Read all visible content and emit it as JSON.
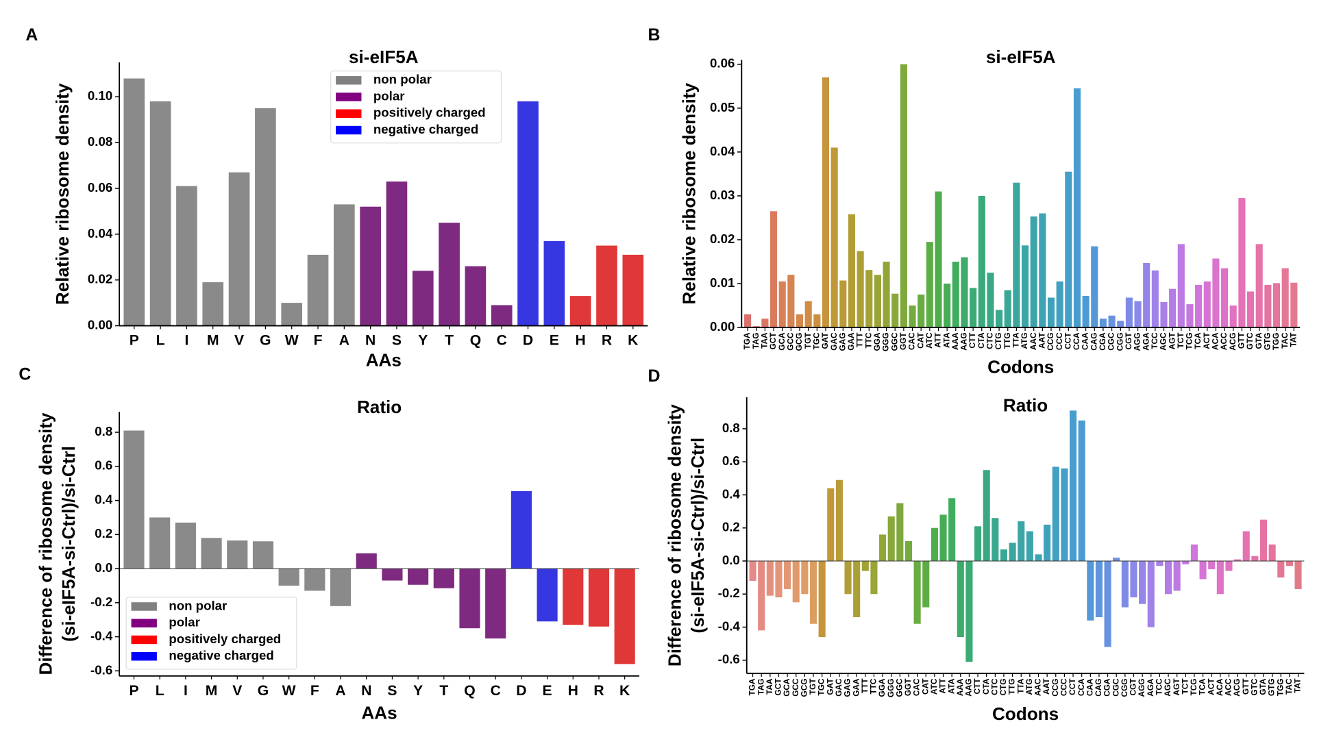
{
  "chart_data": [
    {
      "type": "bar",
      "panel_label": "A",
      "title": "si-eIF5A",
      "xlabel": "AAs",
      "ylabel": "Relative ribosome density",
      "categories": [
        "P",
        "L",
        "I",
        "M",
        "V",
        "G",
        "W",
        "F",
        "A",
        "N",
        "S",
        "Y",
        "T",
        "Q",
        "C",
        "D",
        "E",
        "H",
        "R",
        "K"
      ],
      "values": [
        0.108,
        0.098,
        0.061,
        0.019,
        0.067,
        0.095,
        0.01,
        0.031,
        0.053,
        0.052,
        0.063,
        0.024,
        0.045,
        0.026,
        0.009,
        0.098,
        0.037,
        0.013,
        0.035,
        0.031
      ],
      "colors": [
        "#8a8a8a",
        "#8a8a8a",
        "#8a8a8a",
        "#8a8a8a",
        "#8a8a8a",
        "#8a8a8a",
        "#8a8a8a",
        "#8a8a8a",
        "#8a8a8a",
        "#7d2a80",
        "#7d2a80",
        "#7d2a80",
        "#7d2a80",
        "#7d2a80",
        "#7d2a80",
        "#3737e2",
        "#3737e2",
        "#e03838",
        "#e03838",
        "#e03838"
      ],
      "ylim": [
        0,
        0.115
      ],
      "yticks": [
        {
          "value": 0,
          "label": "0.00"
        },
        {
          "value": 0.02,
          "label": "0.02"
        },
        {
          "value": 0.04,
          "label": "0.04"
        },
        {
          "value": 0.06,
          "label": "0.06"
        },
        {
          "value": 0.08,
          "label": "0.08"
        },
        {
          "value": 0.1,
          "label": "0.10"
        }
      ],
      "legend": {
        "corner": "upper center",
        "entries": [
          {
            "name": "non polar",
            "color": "#808080"
          },
          {
            "name": "polar",
            "color": "#800080"
          },
          {
            "name": "positively charged",
            "color": "#ff0000"
          },
          {
            "name": "negative charged",
            "color": "#0000ff"
          }
        ]
      }
    },
    {
      "type": "bar",
      "panel_label": "B",
      "title": "si-eIF5A",
      "xlabel": "Codons",
      "ylabel": "Relative ribosome density",
      "categories": [
        "TGA",
        "TAG",
        "TAA",
        "GCT",
        "GCA",
        "GCC",
        "GCG",
        "TGT",
        "TGC",
        "GAT",
        "GAC",
        "GAG",
        "GAA",
        "TTT",
        "TTC",
        "GGA",
        "GGG",
        "GGC",
        "GGT",
        "CAC",
        "CAT",
        "ATC",
        "ATT",
        "ATA",
        "AAA",
        "AAG",
        "CTT",
        "CTA",
        "CTC",
        "CTG",
        "TTG",
        "TTA",
        "ATG",
        "AAC",
        "AAT",
        "CCG",
        "CCC",
        "CCT",
        "CCA",
        "CAA",
        "CAG",
        "CGA",
        "CGC",
        "CGG",
        "CGT",
        "AGG",
        "AGA",
        "TCC",
        "AGC",
        "AGT",
        "TCT",
        "TCG",
        "TCA",
        "ACT",
        "ACA",
        "ACC",
        "ACG",
        "GTT",
        "GTC",
        "GTA",
        "GTG",
        "TGG",
        "TAC",
        "TAT"
      ],
      "values": [
        0.003,
        0.0003,
        0.002,
        0.0265,
        0.0105,
        0.012,
        0.003,
        0.006,
        0.003,
        0.057,
        0.041,
        0.0107,
        0.0258,
        0.0174,
        0.0131,
        0.012,
        0.015,
        0.0077,
        0.06,
        0.005,
        0.0075,
        0.0195,
        0.031,
        0.01,
        0.015,
        0.016,
        0.009,
        0.03,
        0.0125,
        0.004,
        0.0085,
        0.033,
        0.0187,
        0.0253,
        0.026,
        0.0068,
        0.0105,
        0.0355,
        0.0545,
        0.0072,
        0.0185,
        0.002,
        0.0027,
        0.0015,
        0.0068,
        0.006,
        0.0147,
        0.013,
        0.0058,
        0.0088,
        0.019,
        0.0053,
        0.0097,
        0.0105,
        0.0157,
        0.0135,
        0.005,
        0.0295,
        0.0082,
        0.019,
        0.0097,
        0.0101,
        0.0135,
        0.0102
      ],
      "colors": [
        "#d9716e",
        "#d8746a",
        "#d97865",
        "#d97c5e",
        "#d88058",
        "#d68451",
        "#d4884a",
        "#d08c44",
        "#cc903f",
        "#c6943a",
        "#c09838",
        "#b99b37",
        "#b29e36",
        "#aaa036",
        "#a2a236",
        "#9aa437",
        "#92a638",
        "#89a83a",
        "#7fa93c",
        "#74ab3e",
        "#68ac42",
        "#5cad46",
        "#50ad4c",
        "#46ad54",
        "#40ad5e",
        "#3cac68",
        "#3aab72",
        "#39aa7c",
        "#39a985",
        "#39a88e",
        "#3aa796",
        "#3ba69e",
        "#3ca5a5",
        "#3da4ac",
        "#3ea3b3",
        "#40a2ba",
        "#42a0c1",
        "#459fc8",
        "#499dce",
        "#4e9bd4",
        "#5598d9",
        "#5e95dd",
        "#6892e0",
        "#738fe3",
        "#7e8be6",
        "#8a88e8",
        "#9585e9",
        "#a082e9",
        "#aa7fe8",
        "#b47ce6",
        "#bd7ae3",
        "#c678df",
        "#ce76da",
        "#d574d4",
        "#da73cd",
        "#de72c6",
        "#e172bf",
        "#e372b8",
        "#e472b1",
        "#e573aa",
        "#e574a3",
        "#e5759c",
        "#e47795",
        "#e3798e"
      ],
      "ylim": [
        0,
        0.061
      ],
      "yticks": [
        {
          "value": 0,
          "label": "0.00"
        },
        {
          "value": 0.01,
          "label": "0.01"
        },
        {
          "value": 0.02,
          "label": "0.02"
        },
        {
          "value": 0.03,
          "label": "0.03"
        },
        {
          "value": 0.04,
          "label": "0.04"
        },
        {
          "value": 0.05,
          "label": "0.05"
        },
        {
          "value": 0.06,
          "label": "0.06"
        }
      ]
    },
    {
      "type": "bar",
      "panel_label": "C",
      "title": "Ratio",
      "xlabel": "AAs",
      "ylabel": [
        "Difference of ribosome density",
        "(si-eIF5A-si-Ctrl)/si-Ctrl"
      ],
      "categories": [
        "P",
        "L",
        "I",
        "M",
        "V",
        "G",
        "W",
        "F",
        "A",
        "N",
        "S",
        "Y",
        "T",
        "Q",
        "C",
        "D",
        "E",
        "H",
        "R",
        "K"
      ],
      "values": [
        0.81,
        0.3,
        0.27,
        0.18,
        0.165,
        0.16,
        -0.1,
        -0.13,
        -0.22,
        0.09,
        -0.07,
        -0.095,
        -0.115,
        -0.35,
        -0.41,
        0.455,
        -0.31,
        -0.33,
        -0.34,
        -0.56
      ],
      "colors": [
        "#8a8a8a",
        "#8a8a8a",
        "#8a8a8a",
        "#8a8a8a",
        "#8a8a8a",
        "#8a8a8a",
        "#8a8a8a",
        "#8a8a8a",
        "#8a8a8a",
        "#7d2a80",
        "#7d2a80",
        "#7d2a80",
        "#7d2a80",
        "#7d2a80",
        "#7d2a80",
        "#3737e2",
        "#3737e2",
        "#e03838",
        "#e03838",
        "#e03838"
      ],
      "ylim": [
        -0.63,
        0.92
      ],
      "yticks": [
        -0.6,
        -0.4,
        -0.2,
        {
          "value": 0,
          "label": "0.0"
        },
        0.2,
        0.4,
        0.6,
        0.8
      ],
      "legend": {
        "corner": "lower left",
        "entries": [
          {
            "name": "non polar",
            "color": "#808080"
          },
          {
            "name": "polar",
            "color": "#800080"
          },
          {
            "name": "positively charged",
            "color": "#ff0000"
          },
          {
            "name": "negative charged",
            "color": "#0000ff"
          }
        ]
      }
    },
    {
      "type": "bar",
      "panel_label": "D",
      "title": "Ratio",
      "xlabel": "Codons",
      "ylabel": [
        "Difference of ribosome density",
        "(si-eIF5A-si-Ctrl)/si-Ctrl"
      ],
      "categories": [
        "TGA",
        "TAG",
        "TAA",
        "GCT",
        "GCA",
        "GCC",
        "GCG",
        "TGT",
        "TGC",
        "GAT",
        "GAC",
        "GAG",
        "GAA",
        "TTT",
        "TTC",
        "GGA",
        "GGG",
        "GGC",
        "GGT",
        "CAC",
        "CAT",
        "ATC",
        "ATT",
        "ATA",
        "AAA",
        "AAG",
        "CTT",
        "CTA",
        "CTC",
        "CTG",
        "TTG",
        "TTA",
        "ATG",
        "AAC",
        "AAT",
        "CCG",
        "CCC",
        "CCT",
        "CCA",
        "CAA",
        "CAG",
        "CGA",
        "CGC",
        "CGG",
        "CGT",
        "AGG",
        "AGA",
        "TCC",
        "AGC",
        "AGT",
        "TCT",
        "TCG",
        "TCA",
        "ACT",
        "ACA",
        "ACC",
        "ACG",
        "GTT",
        "GTC",
        "GTA",
        "GTG",
        "TGG",
        "TAC",
        "TAT"
      ],
      "values": [
        -0.12,
        -0.42,
        -0.21,
        -0.22,
        -0.17,
        -0.25,
        -0.2,
        -0.38,
        -0.46,
        0.44,
        0.49,
        -0.2,
        -0.34,
        -0.06,
        -0.2,
        0.16,
        0.27,
        0.35,
        0.12,
        -0.38,
        -0.28,
        0.2,
        0.28,
        0.38,
        -0.46,
        -0.61,
        0.21,
        0.55,
        0.26,
        0.07,
        0.11,
        0.24,
        0.18,
        0.04,
        0.22,
        0.57,
        0.56,
        0.91,
        0.85,
        -0.36,
        -0.34,
        -0.52,
        0.02,
        -0.28,
        -0.22,
        -0.26,
        -0.4,
        -0.03,
        -0.2,
        -0.18,
        -0.02,
        0.1,
        -0.11,
        -0.05,
        -0.2,
        -0.06,
        0.01,
        0.18,
        0.03,
        0.25,
        0.1,
        -0.1,
        -0.03,
        -0.17
      ],
      "colors": [
        "#e48a88",
        "#e48c84",
        "#e4907f",
        "#e49479",
        "#e39773",
        "#e19a6c",
        "#de9d66",
        "#da9f60",
        "#c6943a",
        "#c09838",
        "#b99b37",
        "#b29e36",
        "#aaa036",
        "#a2a236",
        "#9aa437",
        "#92a638",
        "#89a83a",
        "#7fa93c",
        "#74ab3e",
        "#68ac42",
        "#5cad46",
        "#50ad4c",
        "#46ad54",
        "#40ad5e",
        "#3cac68",
        "#3aab72",
        "#39aa7c",
        "#39a985",
        "#39a88e",
        "#3aa796",
        "#3ba69e",
        "#3ca5a5",
        "#3da4ac",
        "#3ea3b3",
        "#40a2ba",
        "#42a0c1",
        "#459fc8",
        "#499dce",
        "#4e9bd4",
        "#5598d9",
        "#5e95dd",
        "#6892e0",
        "#738fe3",
        "#7e8be6",
        "#8a88e8",
        "#9585e9",
        "#a082e9",
        "#aa7fe8",
        "#b47ce6",
        "#bd7ae3",
        "#c678df",
        "#ce76da",
        "#d574d4",
        "#da73cd",
        "#de72c6",
        "#e172bf",
        "#e372b8",
        "#e472b1",
        "#e573aa",
        "#e574a3",
        "#e5759c",
        "#e47795",
        "#e3798e",
        "#e27b88"
      ],
      "ylim": [
        -0.68,
        0.99
      ],
      "yticks": [
        -0.6,
        -0.4,
        -0.2,
        {
          "value": 0,
          "label": "0.0"
        },
        0.2,
        0.4,
        0.6,
        0.8
      ]
    }
  ]
}
